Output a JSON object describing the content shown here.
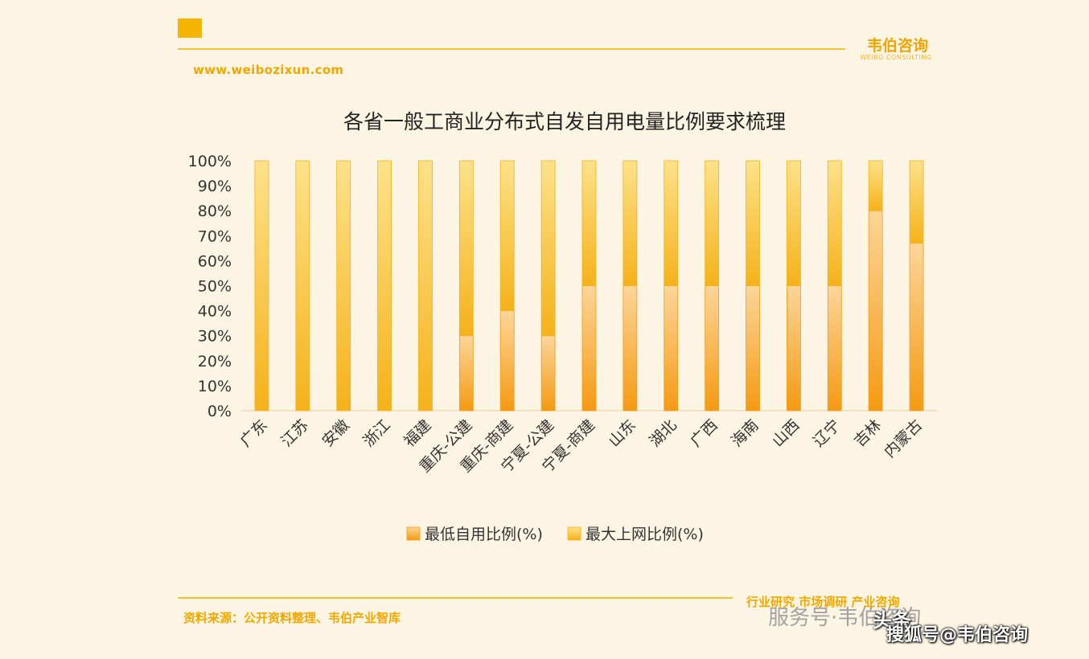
{
  "header": {
    "brand_name": "韦伯咨询",
    "brand_sub": "WEIBO CONSULTING",
    "url": "www.weibozixun.com"
  },
  "footer": {
    "source": "资料来源：公开资料整理、韦伯产业智库",
    "tags": "行业研究   市场调研   产业咨询"
  },
  "watermarks": {
    "wechat": "服务号·韦伯咨询",
    "toutiao": "头条",
    "sohu": "搜狐号@韦伯咨询"
  },
  "colors": {
    "bar_min": "#f7a623",
    "bar_max": "#f9c93a",
    "accent": "#f0a800"
  },
  "chart_data": {
    "type": "bar",
    "stacked": true,
    "title": "各省一般工商业分布式自发自用电量比例要求梳理",
    "categories": [
      "广东",
      "江苏",
      "安徽",
      "浙江",
      "福建",
      "重庆-公建",
      "重庆-商建",
      "宁夏-公建",
      "宁夏-商建",
      "山东",
      "湖北",
      "广西",
      "海南",
      "山西",
      "辽宁",
      "吉林",
      "内蒙古"
    ],
    "series": [
      {
        "name": "最低自用比例(%)",
        "values": [
          0,
          0,
          0,
          0,
          0,
          30,
          40,
          30,
          50,
          50,
          50,
          50,
          50,
          50,
          50,
          80,
          67
        ]
      },
      {
        "name": "最大上网比例(%)",
        "values": [
          100,
          100,
          100,
          100,
          100,
          70,
          60,
          70,
          50,
          50,
          50,
          50,
          50,
          50,
          50,
          20,
          33
        ]
      }
    ],
    "y_ticks": [
      "0%",
      "10%",
      "20%",
      "30%",
      "40%",
      "50%",
      "60%",
      "70%",
      "80%",
      "90%",
      "100%"
    ],
    "ylim": [
      0,
      100
    ],
    "legend": "bottom-center"
  }
}
